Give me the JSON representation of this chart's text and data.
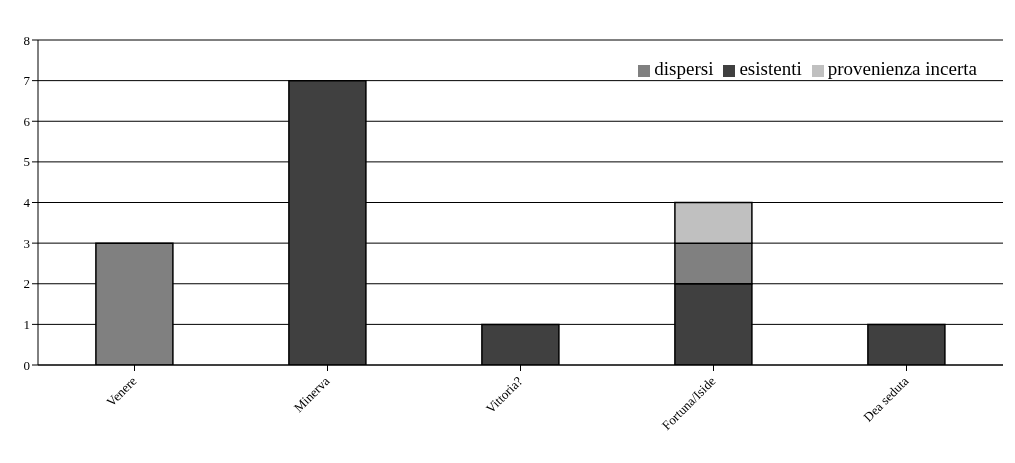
{
  "chart_data": {
    "type": "bar",
    "stacked": true,
    "categories": [
      "Venere",
      "Minerva",
      "Vittoria?",
      "Fortuna/Iside",
      "Dea seduta"
    ],
    "series": [
      {
        "name": "esistenti",
        "color": "#404040",
        "values": [
          null,
          7,
          1,
          2,
          1
        ]
      },
      {
        "name": "dispersi",
        "color": "#808080",
        "values": [
          3,
          null,
          null,
          1,
          null
        ]
      },
      {
        "name": "provenienza incerta",
        "color": "#c0c0c0",
        "values": [
          null,
          null,
          null,
          1,
          null
        ]
      }
    ],
    "ylim": [
      0,
      8
    ],
    "yticks": [
      0,
      1,
      2,
      3,
      4,
      5,
      6,
      7,
      8
    ],
    "grid": "y",
    "legend": "top right"
  }
}
